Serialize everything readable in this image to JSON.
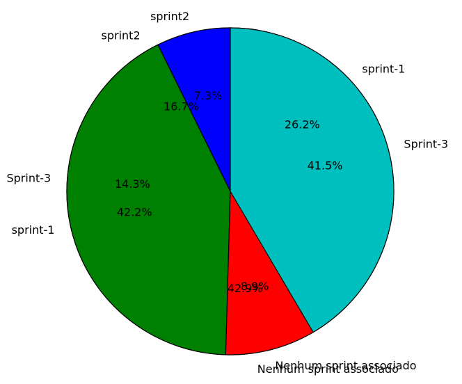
{
  "chart_data": [
    {
      "type": "pie",
      "title": "",
      "start_angle_deg": 90,
      "direction": "counterclockwise",
      "categories": [
        "sprint2",
        "Sprint-3",
        "Nenhum sprint associado",
        "sprint-1"
      ],
      "values": [
        16.7,
        14.3,
        42.9,
        26.2
      ],
      "labels": [
        "16.7%",
        "14.3%",
        "42.9%",
        "26.2%"
      ],
      "colors": [
        "#0000ff",
        "#008000",
        "#ff0000",
        "#00bfbf"
      ]
    },
    {
      "type": "pie",
      "title": "",
      "start_angle_deg": 90,
      "direction": "counterclockwise",
      "categories": [
        "sprint2",
        "sprint-1",
        "Nenhum sprint associado",
        "Sprint-3"
      ],
      "values": [
        7.3,
        42.2,
        8.9,
        41.5
      ],
      "labels": [
        "7.3%",
        "42.2%",
        "8.9%",
        "41.5%"
      ],
      "colors": [
        "#0000ff",
        "#008000",
        "#ff0000",
        "#00bfbf"
      ]
    }
  ]
}
